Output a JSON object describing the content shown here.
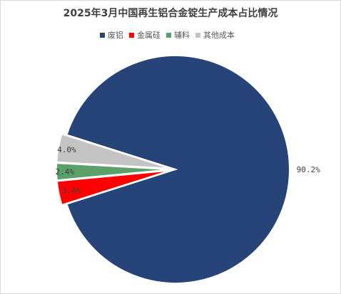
{
  "chart_data": {
    "type": "pie",
    "title": "2025年3月中国再生铝合金锭生产成本占比情况",
    "categories": [
      "废铝",
      "金属硅",
      "辅料",
      "其他成本"
    ],
    "values": [
      90.2,
      3.4,
      2.4,
      4.0
    ],
    "labels": [
      "90.2%",
      "3.4%",
      "2.4%",
      "4.0%"
    ],
    "colors": [
      "#264478",
      "#ff0000",
      "#5b9f6b",
      "#c4c4c4"
    ],
    "legend_position": "top",
    "exploded": [
      false,
      true,
      true,
      true
    ]
  }
}
